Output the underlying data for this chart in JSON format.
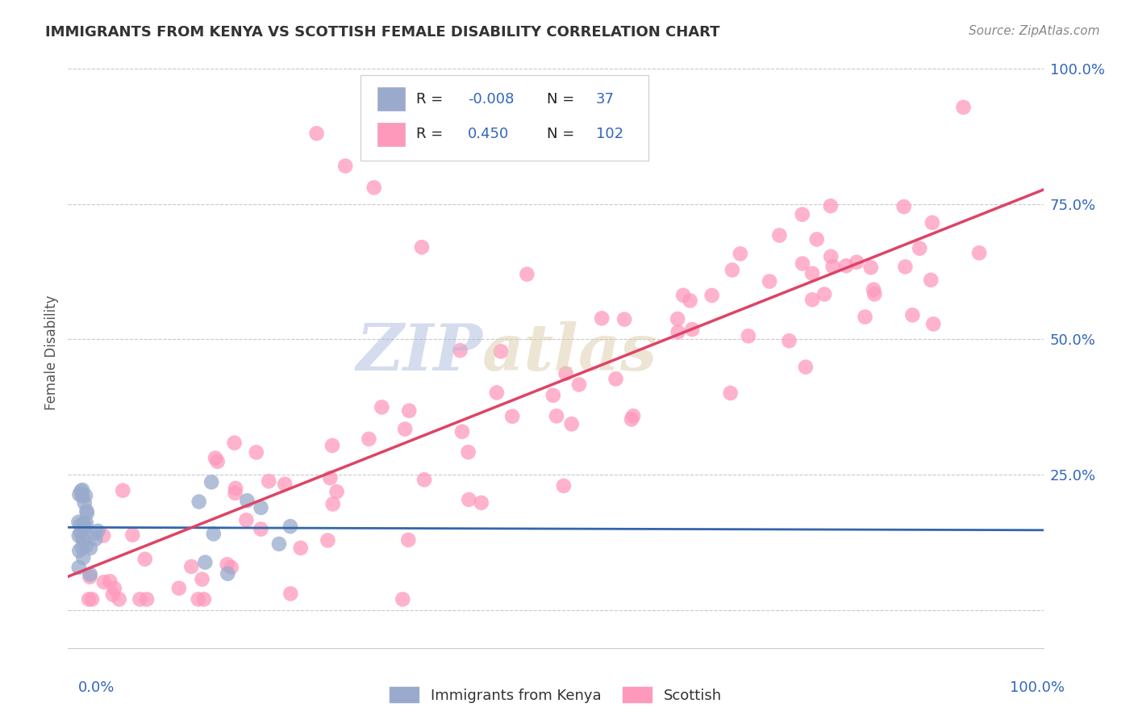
{
  "title": "IMMIGRANTS FROM KENYA VS SCOTTISH FEMALE DISABILITY CORRELATION CHART",
  "source": "Source: ZipAtlas.com",
  "ylabel": "Female Disability",
  "legend_blue_R": "-0.008",
  "legend_blue_N": "37",
  "legend_pink_R": "0.450",
  "legend_pink_N": "102",
  "x_legend_left": "Immigrants from Kenya",
  "x_legend_right": "Scottish",
  "blue_color": "#99AACC",
  "pink_color": "#FF99BB",
  "blue_line_color": "#3366AA",
  "pink_line_color": "#DD4466",
  "background_color": "#FFFFFF",
  "grid_color": "#BBBBBB",
  "title_color": "#333333",
  "source_color": "#888888",
  "axis_label_color": "#3366BB",
  "right_tick_color": "#3366BB",
  "legend_R_color": "#222222",
  "legend_N_color": "#222222",
  "legend_val_color": "#3366BB",
  "watermark_zip_color": "#AABBDD",
  "watermark_atlas_color": "#DDCCAA",
  "ylim_min": -0.07,
  "ylim_max": 1.02,
  "xlim_min": -0.01,
  "xlim_max": 1.01
}
